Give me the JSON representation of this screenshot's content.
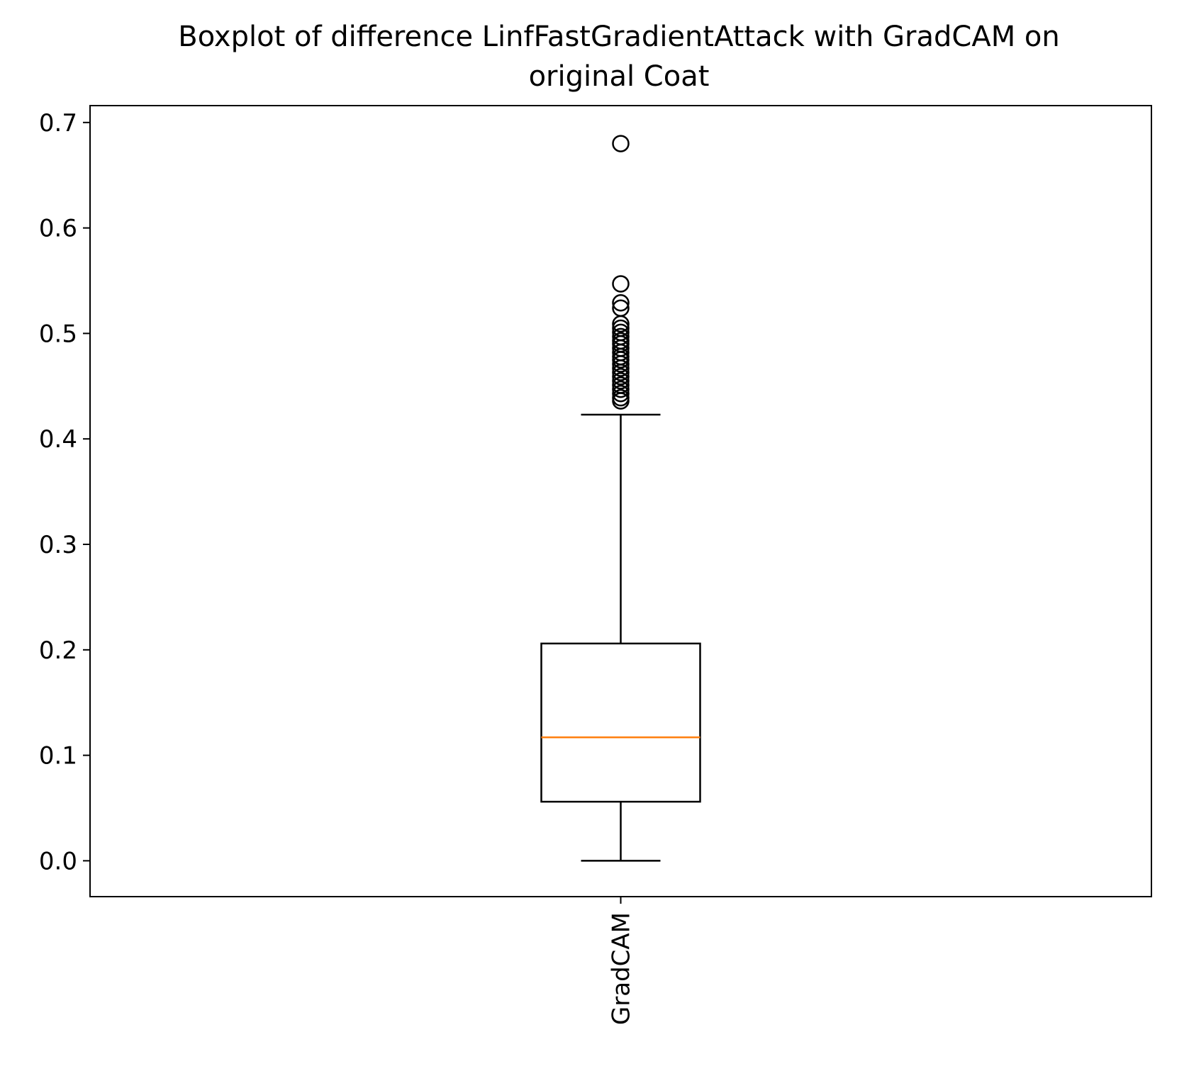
{
  "chart_data": {
    "type": "boxplot",
    "title_line1": "Boxplot of difference LinfFastGradientAttack with GradCAM on",
    "title_line2": "original Coat",
    "xlabel": "",
    "ylabel": "",
    "categories": [
      "GradCAM"
    ],
    "ylim": [
      -0.034,
      0.716
    ],
    "yticks": [
      "0.0",
      "0.1",
      "0.2",
      "0.3",
      "0.4",
      "0.5",
      "0.6",
      "0.7"
    ],
    "grid": false,
    "boxes": [
      {
        "name": "GradCAM",
        "whisker_low": 0.0,
        "q1": 0.056,
        "median": 0.117,
        "q3": 0.206,
        "whisker_high": 0.423,
        "outliers": [
          0.68,
          0.547,
          0.529,
          0.524,
          0.509,
          0.505,
          0.501,
          0.497,
          0.493,
          0.49,
          0.486,
          0.482,
          0.478,
          0.475,
          0.471,
          0.467,
          0.463,
          0.459,
          0.455,
          0.451,
          0.447,
          0.443,
          0.439,
          0.436
        ]
      }
    ],
    "colors": {
      "box": "#000000",
      "median": "#ff7f0e",
      "outlier": "#000000"
    }
  }
}
